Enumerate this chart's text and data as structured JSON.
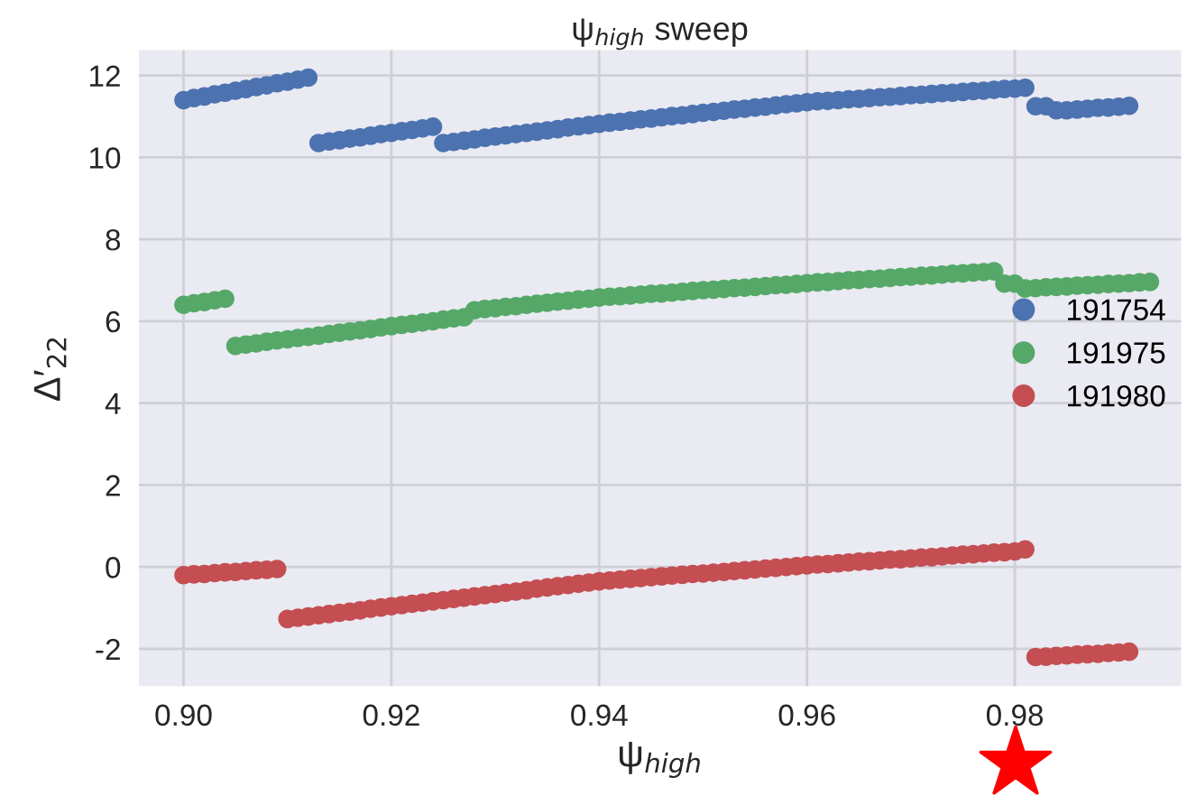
{
  "chart_data": {
    "type": "scatter",
    "title": "ψ$_{high}$ sweep",
    "xlabel": "ψ$_{high}$",
    "ylabel": "Δ′$_{22}$",
    "xlim": [
      0.8957,
      0.996
    ],
    "ylim": [
      -2.91,
      12.62
    ],
    "xticks": [
      {
        "value": 0.9,
        "label": "0.90"
      },
      {
        "value": 0.92,
        "label": "0.92"
      },
      {
        "value": 0.94,
        "label": "0.94"
      },
      {
        "value": 0.96,
        "label": "0.96"
      },
      {
        "value": 0.98,
        "label": "0.98"
      }
    ],
    "yticks": [
      -2,
      0,
      2,
      4,
      6,
      8,
      10,
      12
    ],
    "grid": true,
    "legend": "right",
    "marker": "circle",
    "series": [
      {
        "name": "191754",
        "color": "#4c72b0",
        "x": [
          0.9,
          0.901,
          0.902,
          0.903,
          0.904,
          0.905,
          0.906,
          0.907,
          0.908,
          0.909,
          0.91,
          0.911,
          0.912,
          0.913,
          0.914,
          0.915,
          0.916,
          0.917,
          0.918,
          0.919,
          0.92,
          0.921,
          0.922,
          0.923,
          0.924,
          0.925,
          0.926,
          0.927,
          0.928,
          0.929,
          0.93,
          0.931,
          0.932,
          0.933,
          0.934,
          0.935,
          0.936,
          0.937,
          0.938,
          0.939,
          0.94,
          0.941,
          0.942,
          0.943,
          0.944,
          0.945,
          0.946,
          0.947,
          0.948,
          0.949,
          0.95,
          0.951,
          0.952,
          0.953,
          0.954,
          0.955,
          0.956,
          0.957,
          0.958,
          0.959,
          0.96,
          0.961,
          0.962,
          0.963,
          0.964,
          0.965,
          0.966,
          0.967,
          0.968,
          0.969,
          0.97,
          0.971,
          0.972,
          0.973,
          0.974,
          0.975,
          0.976,
          0.977,
          0.978,
          0.979,
          0.98,
          0.981,
          0.982,
          0.983,
          0.984,
          0.985,
          0.986,
          0.987,
          0.988,
          0.989,
          0.99,
          0.991
        ],
        "values": [
          11.4,
          11.45,
          11.49,
          11.54,
          11.58,
          11.63,
          11.67,
          11.72,
          11.76,
          11.81,
          11.85,
          11.9,
          11.95,
          10.35,
          10.39,
          10.42,
          10.46,
          10.49,
          10.53,
          10.57,
          10.6,
          10.64,
          10.67,
          10.71,
          10.75,
          10.35,
          10.38,
          10.41,
          10.44,
          10.48,
          10.51,
          10.54,
          10.57,
          10.6,
          10.63,
          10.66,
          10.69,
          10.73,
          10.76,
          10.79,
          10.82,
          10.85,
          10.87,
          10.9,
          10.93,
          10.95,
          10.98,
          11.01,
          11.03,
          11.06,
          11.09,
          11.11,
          11.14,
          11.17,
          11.19,
          11.22,
          11.24,
          11.27,
          11.3,
          11.32,
          11.35,
          11.37,
          11.38,
          11.4,
          11.42,
          11.43,
          11.45,
          11.47,
          11.48,
          11.5,
          11.52,
          11.53,
          11.55,
          11.57,
          11.58,
          11.6,
          11.62,
          11.63,
          11.65,
          11.67,
          11.68,
          11.7,
          11.25,
          11.25,
          11.15,
          11.15,
          11.17,
          11.19,
          11.21,
          11.22,
          11.24,
          11.26
        ]
      },
      {
        "name": "191975",
        "color": "#55a868",
        "x": [
          0.9,
          0.901,
          0.902,
          0.903,
          0.904,
          0.905,
          0.906,
          0.907,
          0.908,
          0.909,
          0.91,
          0.911,
          0.912,
          0.913,
          0.914,
          0.915,
          0.916,
          0.917,
          0.918,
          0.919,
          0.92,
          0.921,
          0.922,
          0.923,
          0.924,
          0.925,
          0.926,
          0.927,
          0.928,
          0.929,
          0.93,
          0.931,
          0.932,
          0.933,
          0.934,
          0.935,
          0.936,
          0.937,
          0.938,
          0.939,
          0.94,
          0.941,
          0.942,
          0.943,
          0.944,
          0.945,
          0.946,
          0.947,
          0.948,
          0.949,
          0.95,
          0.951,
          0.952,
          0.953,
          0.954,
          0.955,
          0.956,
          0.957,
          0.958,
          0.959,
          0.96,
          0.961,
          0.962,
          0.963,
          0.964,
          0.965,
          0.966,
          0.967,
          0.968,
          0.969,
          0.97,
          0.971,
          0.972,
          0.973,
          0.974,
          0.975,
          0.976,
          0.977,
          0.978,
          0.979,
          0.98,
          0.981,
          0.982,
          0.983,
          0.984,
          0.985,
          0.986,
          0.987,
          0.988,
          0.989,
          0.99,
          0.991,
          0.992,
          0.993
        ],
        "values": [
          6.4,
          6.44,
          6.47,
          6.51,
          6.55,
          5.4,
          5.43,
          5.46,
          5.5,
          5.53,
          5.56,
          5.59,
          5.62,
          5.65,
          5.69,
          5.72,
          5.75,
          5.78,
          5.81,
          5.85,
          5.88,
          5.91,
          5.94,
          5.97,
          6.0,
          6.04,
          6.07,
          6.1,
          6.27,
          6.3,
          6.32,
          6.35,
          6.37,
          6.4,
          6.43,
          6.45,
          6.48,
          6.5,
          6.53,
          6.55,
          6.58,
          6.6,
          6.61,
          6.63,
          6.65,
          6.67,
          6.68,
          6.7,
          6.72,
          6.74,
          6.76,
          6.77,
          6.79,
          6.81,
          6.82,
          6.84,
          6.86,
          6.88,
          6.89,
          6.91,
          6.93,
          6.95,
          6.96,
          6.98,
          7.0,
          7.01,
          7.03,
          7.04,
          7.06,
          7.08,
          7.09,
          7.11,
          7.12,
          7.14,
          7.16,
          7.17,
          7.19,
          7.2,
          7.22,
          6.92,
          6.92,
          6.8,
          6.81,
          6.83,
          6.84,
          6.85,
          6.87,
          6.88,
          6.89,
          6.91,
          6.92,
          6.93,
          6.95,
          6.96
        ]
      },
      {
        "name": "191980",
        "color": "#c44e52",
        "x": [
          0.9,
          0.901,
          0.902,
          0.903,
          0.904,
          0.905,
          0.906,
          0.907,
          0.908,
          0.909,
          0.91,
          0.911,
          0.912,
          0.913,
          0.914,
          0.915,
          0.916,
          0.917,
          0.918,
          0.919,
          0.92,
          0.921,
          0.922,
          0.923,
          0.924,
          0.925,
          0.926,
          0.927,
          0.928,
          0.929,
          0.93,
          0.931,
          0.932,
          0.933,
          0.934,
          0.935,
          0.936,
          0.937,
          0.938,
          0.939,
          0.94,
          0.941,
          0.942,
          0.943,
          0.944,
          0.945,
          0.946,
          0.947,
          0.948,
          0.949,
          0.95,
          0.951,
          0.952,
          0.953,
          0.954,
          0.955,
          0.956,
          0.957,
          0.958,
          0.959,
          0.96,
          0.961,
          0.962,
          0.963,
          0.964,
          0.965,
          0.966,
          0.967,
          0.968,
          0.969,
          0.97,
          0.971,
          0.972,
          0.973,
          0.974,
          0.975,
          0.976,
          0.977,
          0.978,
          0.979,
          0.98,
          0.981,
          0.982,
          0.983,
          0.984,
          0.985,
          0.986,
          0.987,
          0.988,
          0.989,
          0.99,
          0.991
        ],
        "values": [
          -0.2,
          -0.18,
          -0.17,
          -0.15,
          -0.13,
          -0.12,
          -0.1,
          -0.08,
          -0.07,
          -0.05,
          -1.27,
          -1.24,
          -1.21,
          -1.18,
          -1.15,
          -1.12,
          -1.09,
          -1.06,
          -1.02,
          -0.99,
          -0.96,
          -0.93,
          -0.9,
          -0.87,
          -0.84,
          -0.81,
          -0.78,
          -0.75,
          -0.72,
          -0.69,
          -0.66,
          -0.63,
          -0.6,
          -0.57,
          -0.53,
          -0.5,
          -0.47,
          -0.44,
          -0.41,
          -0.38,
          -0.35,
          -0.33,
          -0.31,
          -0.29,
          -0.27,
          -0.25,
          -0.23,
          -0.21,
          -0.19,
          -0.17,
          -0.16,
          -0.14,
          -0.12,
          -0.1,
          -0.08,
          -0.06,
          -0.04,
          -0.02,
          0.0,
          0.02,
          0.04,
          0.06,
          0.07,
          0.09,
          0.11,
          0.13,
          0.14,
          0.16,
          0.18,
          0.19,
          0.21,
          0.23,
          0.24,
          0.26,
          0.28,
          0.3,
          0.31,
          0.33,
          0.35,
          0.36,
          0.38,
          0.43,
          -2.2,
          -2.19,
          -2.17,
          -2.16,
          -2.14,
          -2.13,
          -2.12,
          -2.1,
          -2.09,
          -2.07
        ]
      }
    ]
  }
}
